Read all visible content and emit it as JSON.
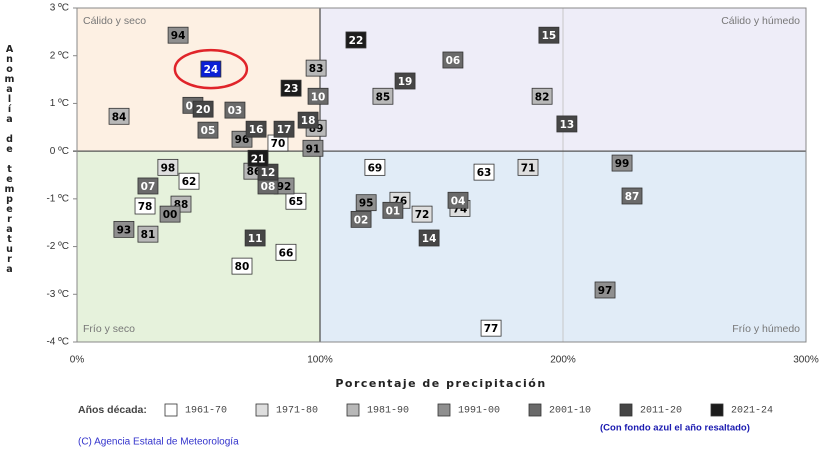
{
  "chart_data": {
    "type": "scatter",
    "xlabel": "Porcentaje de precipitación",
    "ylabel": "Anomalía de temperatura",
    "xlim": [
      0,
      300
    ],
    "ylim": [
      -4,
      3
    ],
    "xticks": [
      {
        "value": 0,
        "label": "0%"
      },
      {
        "value": 100,
        "label": "100%"
      },
      {
        "value": 200,
        "label": "200%"
      },
      {
        "value": 300,
        "label": "300%"
      }
    ],
    "yticks": [
      {
        "value": -4,
        "label": "-4 ºC"
      },
      {
        "value": -3,
        "label": "-3 ºC"
      },
      {
        "value": -2,
        "label": "-2 ºC"
      },
      {
        "value": -1,
        "label": "-1 ºC"
      },
      {
        "value": 0,
        "label": "0 ºC"
      },
      {
        "value": 1,
        "label": "1 ºC"
      },
      {
        "value": 2,
        "label": "2 ºC"
      },
      {
        "value": 3,
        "label": "3 ºC"
      }
    ],
    "quadrants": [
      {
        "label": "Cálido y seco",
        "corner": "top-left",
        "color": "#fdf0e3"
      },
      {
        "label": "Cálido y húmedo",
        "corner": "top-right",
        "color": "#eeedf8"
      },
      {
        "label": "Frío y seco",
        "corner": "bottom-left",
        "color": "#e6f2dc"
      },
      {
        "label": "Frío y húmedo",
        "corner": "bottom-right",
        "color": "#e1ecf7"
      }
    ],
    "legend_title": "Años década:",
    "note": "(Con fondo azul el año resaltado)",
    "credit": "(C) Agencia Estatal de Meteorología",
    "series": [
      {
        "name": "1961-70",
        "color": "#ffffff",
        "text_color": "#000000",
        "labels": [
          "70",
          "69",
          "63",
          "62",
          "78",
          "65",
          "66",
          "80",
          "77"
        ],
        "x": [
          82.7,
          122.6,
          167.5,
          46.1,
          28.0,
          90.1,
          86.0,
          67.9,
          170.4
        ],
        "values": [
          0.17,
          -0.34,
          -0.44,
          -0.63,
          -1.15,
          -1.05,
          -2.12,
          -2.41,
          -3.71
        ]
      },
      {
        "name": "1971-80",
        "color": "#dedede",
        "text_color": "#000000",
        "labels": [
          "71",
          "98",
          "74",
          "76",
          "72"
        ],
        "x": [
          185.6,
          37.4,
          157.6,
          132.9,
          142.0
        ],
        "values": [
          -0.34,
          -0.34,
          -1.2,
          -1.03,
          -1.32
        ]
      },
      {
        "name": "1981-90",
        "color": "#b8b8b8",
        "text_color": "#000000",
        "labels": [
          "83",
          "85",
          "82",
          "84",
          "89",
          "86",
          "88",
          "81"
        ],
        "x": [
          98.4,
          125.9,
          191.4,
          17.3,
          98.4,
          72.8,
          42.8,
          29.2
        ],
        "values": [
          1.74,
          1.15,
          1.15,
          0.73,
          0.48,
          -0.42,
          -1.11,
          -1.74
        ]
      },
      {
        "name": "1991-00",
        "color": "#8f8f8f",
        "text_color": "#000000",
        "labels": [
          "94",
          "96",
          "91",
          "99",
          "92",
          "00",
          "95",
          "93",
          "97"
        ],
        "x": [
          41.6,
          67.9,
          97.1,
          224.3,
          85.2,
          38.3,
          119.0,
          19.3,
          217.3
        ],
        "values": [
          2.43,
          0.25,
          0.06,
          -0.25,
          -0.73,
          -1.32,
          -1.08,
          -1.64,
          -2.91
        ]
      },
      {
        "name": "2001-10",
        "color": "#6a6a6a",
        "text_color": "#ffffff",
        "labels": [
          "06",
          "10",
          "09",
          "03",
          "05",
          "08",
          "07",
          "87",
          "01",
          "02",
          "04"
        ],
        "x": [
          154.7,
          99.2,
          47.7,
          65.0,
          53.9,
          78.6,
          29.2,
          228.4,
          130.0,
          116.9,
          156.8
        ],
        "values": [
          1.91,
          1.15,
          0.96,
          0.86,
          0.44,
          -0.73,
          -0.73,
          -0.94,
          -1.24,
          -1.43,
          -1.03
        ]
      },
      {
        "name": "2011-20",
        "color": "#464646",
        "text_color": "#ffffff",
        "labels": [
          "15",
          "19",
          "20",
          "13",
          "18",
          "16",
          "17",
          "12",
          "11",
          "14"
        ],
        "x": [
          194.2,
          135.0,
          51.9,
          201.6,
          95.1,
          73.7,
          85.2,
          78.6,
          73.3,
          144.9
        ],
        "values": [
          2.43,
          1.47,
          0.88,
          0.57,
          0.65,
          0.46,
          0.46,
          -0.44,
          -1.82,
          -1.82
        ]
      },
      {
        "name": "2021-24",
        "color": "#1c1c1c",
        "text_color": "#ffffff",
        "labels": [
          "22",
          "23",
          "21",
          "24"
        ],
        "x": [
          114.8,
          88.1,
          74.5,
          55.1
        ],
        "values": [
          2.33,
          1.32,
          -0.15,
          1.72
        ],
        "highlight_index": 3,
        "highlight_color": "#0a1fd6"
      }
    ]
  }
}
